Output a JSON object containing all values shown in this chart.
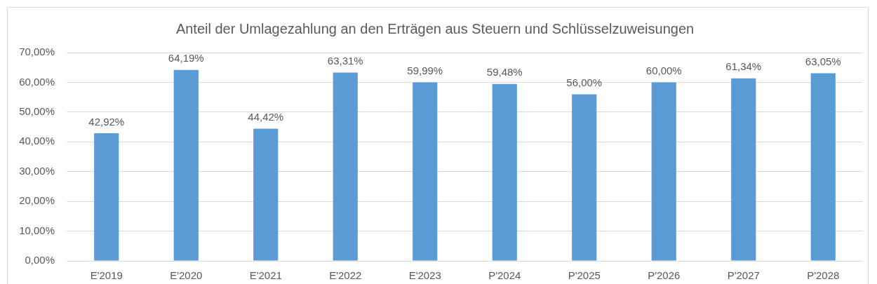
{
  "chart_data": {
    "type": "bar",
    "title": "Anteil der Umlagezahlung an den Erträgen aus Steuern und Schlüsselzuweisungen",
    "categories": [
      "E'2019",
      "E'2020",
      "E'2021",
      "E'2022",
      "E'2023",
      "P'2024",
      "P'2025",
      "P'2026",
      "P'2027",
      "P'2028"
    ],
    "values": [
      42.92,
      64.19,
      44.42,
      63.31,
      59.99,
      59.48,
      56.0,
      60.0,
      61.34,
      63.05
    ],
    "value_labels": [
      "42,92%",
      "64,19%",
      "44,42%",
      "63,31%",
      "59,99%",
      "59,48%",
      "56,00%",
      "60,00%",
      "61,34%",
      "63,05%"
    ],
    "color": "#5b9bd5",
    "ylim": [
      0,
      70
    ],
    "yticks": [
      {
        "value": 0,
        "label": "0,00%"
      },
      {
        "value": 10,
        "label": "10,00%"
      },
      {
        "value": 20,
        "label": "20,00%"
      },
      {
        "value": 30,
        "label": "30,00%"
      },
      {
        "value": 40,
        "label": "40,00%"
      },
      {
        "value": 50,
        "label": "50,00%"
      },
      {
        "value": 60,
        "label": "60,00%"
      },
      {
        "value": 70,
        "label": "70,00%"
      }
    ],
    "grid": "y"
  }
}
